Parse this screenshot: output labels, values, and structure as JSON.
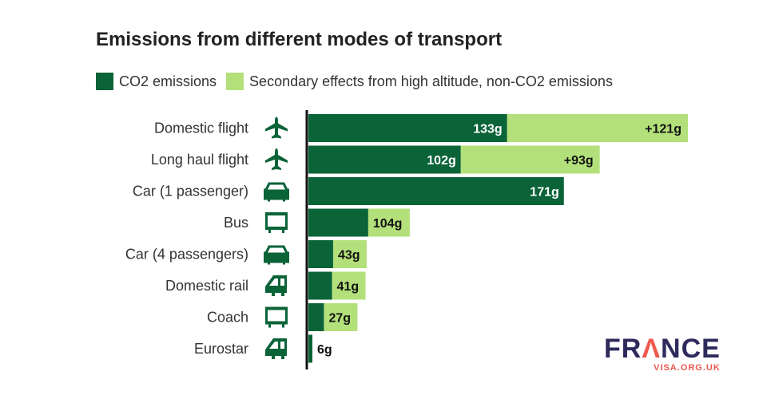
{
  "chart_data": {
    "type": "bar",
    "orientation": "horizontal",
    "stacked": true,
    "title": "Emissions from different modes of transport",
    "categories": [
      "Domestic flight",
      "Long haul flight",
      "Car (1 passenger)",
      "Bus",
      "Car (4 passengers)",
      "Domestic rail",
      "Coach",
      "Eurostar"
    ],
    "icons": [
      "plane-icon",
      "plane-icon",
      "car-icon",
      "bus-icon",
      "car-icon",
      "train-icon",
      "bus-icon",
      "train-icon"
    ],
    "series": [
      {
        "name": "CO2 emissions",
        "color": "#0b6338",
        "values": [
          133,
          102,
          171,
          104,
          43,
          41,
          27,
          6
        ],
        "labels": [
          "133g",
          "102g",
          "171g",
          "104g",
          "43g",
          "41g",
          "27g",
          "6g"
        ]
      },
      {
        "name": "Secondary effects from high altitude, non-CO2 emissions",
        "color": "#b3e07a",
        "values": [
          121,
          93,
          0,
          0,
          0,
          0,
          0,
          0
        ],
        "labels": [
          "+121g",
          "+93g",
          "",
          "",
          "",
          "",
          "",
          ""
        ]
      }
    ],
    "grid": false,
    "legend_position": "top-left"
  },
  "logo": {
    "brand": "FRANCE",
    "sub": "VISA.ORG.UK"
  }
}
